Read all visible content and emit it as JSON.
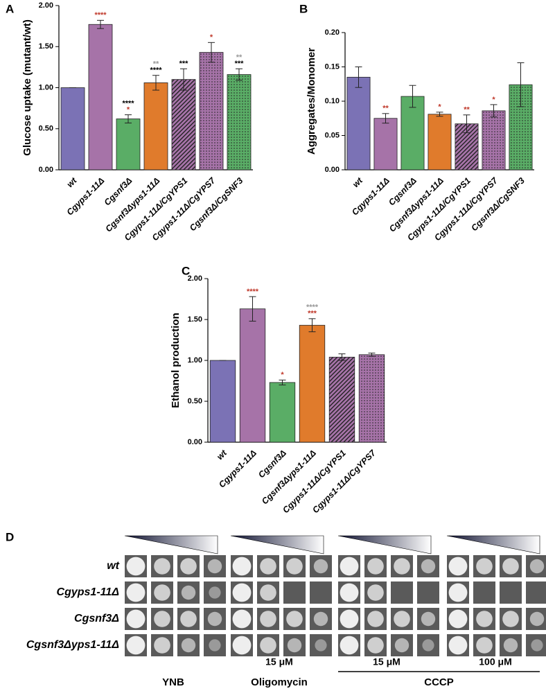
{
  "chart_data": [
    {
      "type": "bar",
      "label": "A",
      "ylabel": "Glucose uptake (mutant/wt)",
      "categories": [
        "wt",
        "Cgyps1-11Δ",
        "Cgsnf3Δ",
        "Cgsnf3Δyps1-11Δ",
        "Cgyps1-11Δ/CgYPS1",
        "Cgyps1-11Δ/CgYPS7",
        "Cgsnf3Δ/CgSNF3"
      ],
      "values": [
        1.0,
        1.77,
        0.62,
        1.06,
        1.1,
        1.43,
        1.16
      ],
      "errors": [
        0,
        0.05,
        0.05,
        0.09,
        0.13,
        0.12,
        0.07
      ],
      "colors": [
        "#7b72b5",
        "#a673a8",
        "#5aad66",
        "#e07b2c",
        "#a673a8",
        "#a673a8",
        "#5aad66"
      ],
      "patterns": [
        "solid",
        "solid",
        "solid",
        "solid",
        "hatch",
        "dots",
        "dots"
      ],
      "significance": [
        null,
        [
          {
            "text": "****",
            "color": "#c0392b"
          }
        ],
        [
          {
            "text": "****",
            "color": "#000000"
          },
          {
            "text": "*",
            "color": "#c0392b"
          }
        ],
        [
          {
            "text": "**",
            "color": "#999999"
          },
          {
            "text": "****",
            "color": "#000000"
          }
        ],
        [
          {
            "text": "***",
            "color": "#000000"
          }
        ],
        [
          {
            "text": "*",
            "color": "#c0392b"
          }
        ],
        [
          {
            "text": "**",
            "color": "#999999"
          },
          {
            "text": "***",
            "color": "#000000"
          }
        ]
      ],
      "ylim": [
        0,
        2
      ],
      "yticks": [
        {
          "value": 0,
          "label": "0.00"
        },
        {
          "value": 0.5,
          "label": "0.50"
        },
        {
          "value": 1,
          "label": "1.00"
        },
        {
          "value": 1.5,
          "label": "1.50"
        },
        {
          "value": 2,
          "label": "2.00"
        }
      ]
    },
    {
      "type": "bar",
      "label": "B",
      "ylabel": "Aggregates/Monomer",
      "categories": [
        "wt",
        "Cgyps1-11Δ",
        "Cgsnf3Δ",
        "Cgsnf3Δyps1-11Δ",
        "Cgyps1-11Δ/CgYPS1",
        "Cgyps1-11Δ/CgYPS7",
        "Cgsnf3Δ/CgSNF3"
      ],
      "values": [
        0.135,
        0.075,
        0.107,
        0.081,
        0.067,
        0.086,
        0.124
      ],
      "errors": [
        0.015,
        0.007,
        0.016,
        0.003,
        0.013,
        0.009,
        0.032
      ],
      "colors": [
        "#7b72b5",
        "#a673a8",
        "#5aad66",
        "#e07b2c",
        "#a673a8",
        "#a673a8",
        "#5aad66"
      ],
      "patterns": [
        "solid",
        "solid",
        "solid",
        "solid",
        "hatch",
        "dots",
        "dots"
      ],
      "significance": [
        null,
        [
          {
            "text": "**",
            "color": "#c0392b"
          }
        ],
        null,
        [
          {
            "text": "*",
            "color": "#c0392b"
          }
        ],
        [
          {
            "text": "**",
            "color": "#c0392b"
          }
        ],
        [
          {
            "text": "*",
            "color": "#c0392b"
          }
        ],
        null
      ],
      "ylim": [
        0,
        0.2
      ],
      "yticks": [
        {
          "value": 0,
          "label": "0.00"
        },
        {
          "value": 0.05,
          "label": "0.05"
        },
        {
          "value": 0.1,
          "label": "0.10"
        },
        {
          "value": 0.15,
          "label": "0.15"
        },
        {
          "value": 0.2,
          "label": "0.20"
        }
      ]
    },
    {
      "type": "bar",
      "label": "C",
      "ylabel": "Ethanol production",
      "categories": [
        "wt",
        "Cgyps1-11Δ",
        "Cgsnf3Δ",
        "Cgsnf3Δyps1-11Δ",
        "Cgyps1-11Δ/CgYPS1",
        "Cgyps1-11Δ/CgYPS7"
      ],
      "values": [
        1.0,
        1.63,
        0.73,
        1.43,
        1.04,
        1.07
      ],
      "errors": [
        0,
        0.15,
        0.03,
        0.08,
        0.04,
        0.02
      ],
      "colors": [
        "#7b72b5",
        "#a673a8",
        "#5aad66",
        "#e07b2c",
        "#a673a8",
        "#a673a8"
      ],
      "patterns": [
        "solid",
        "solid",
        "solid",
        "solid",
        "hatch",
        "dots"
      ],
      "significance": [
        null,
        [
          {
            "text": "****",
            "color": "#c0392b"
          }
        ],
        [
          {
            "text": "*",
            "color": "#c0392b"
          }
        ],
        [
          {
            "text": "****",
            "color": "#999999"
          },
          {
            "text": "***",
            "color": "#c0392b"
          }
        ],
        null,
        null
      ],
      "ylim": [
        0,
        2
      ],
      "yticks": [
        {
          "value": 0,
          "label": "0.00"
        },
        {
          "value": 0.5,
          "label": "0.50"
        },
        {
          "value": 1,
          "label": "1.00"
        },
        {
          "value": 1.5,
          "label": "1.50"
        },
        {
          "value": 2,
          "label": "2.00"
        }
      ]
    }
  ],
  "spot_assay": {
    "label": "D",
    "rows": [
      "wt",
      "Cgyps1-11Δ",
      "Cgsnf3Δ",
      "Cgsnf3Δyps1-11Δ"
    ],
    "groups": [
      {
        "name": "YNB"
      },
      {
        "name": "Oligomycin",
        "concentrations": [
          "15 μM"
        ]
      },
      {
        "name": "CCCP",
        "concentrations": [
          "15 μM",
          "100 μM"
        ]
      }
    ]
  }
}
